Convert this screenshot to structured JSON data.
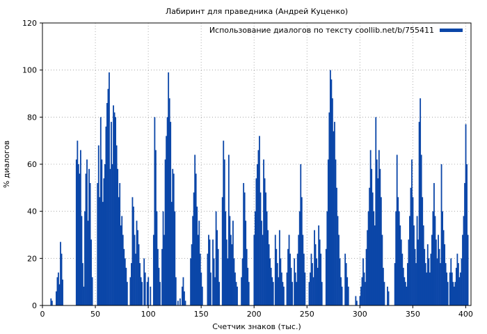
{
  "chart_data": {
    "type": "bar",
    "title": "Лабиринт для праведника (Андрей Куценко)",
    "xlabel": "Счетчик знаков (тыс.)",
    "ylabel": "% диалогов",
    "xlim": [
      0,
      405
    ],
    "ylim": [
      0,
      120
    ],
    "xticks": [
      0,
      50,
      100,
      150,
      200,
      250,
      300,
      350,
      400
    ],
    "yticks": [
      0,
      20,
      40,
      60,
      80,
      100,
      120
    ],
    "grid": true,
    "legend_position": "top-right",
    "bar_color": "#0b46a8",
    "series": [
      {
        "name": "Использование диалогов по тексту coollib.net/b/755411",
        "points": [
          [
            8,
            3
          ],
          [
            9,
            2
          ],
          [
            13,
            6
          ],
          [
            14,
            12
          ],
          [
            15,
            14
          ],
          [
            16,
            9
          ],
          [
            17,
            27
          ],
          [
            18,
            22
          ],
          [
            19,
            11
          ],
          [
            32,
            62
          ],
          [
            33,
            70
          ],
          [
            34,
            60
          ],
          [
            35,
            56
          ],
          [
            36,
            66
          ],
          [
            37,
            38
          ],
          [
            38,
            18
          ],
          [
            39,
            8
          ],
          [
            40,
            40
          ],
          [
            41,
            56
          ],
          [
            42,
            62
          ],
          [
            43,
            36
          ],
          [
            44,
            58
          ],
          [
            45,
            52
          ],
          [
            46,
            28
          ],
          [
            47,
            12
          ],
          [
            52,
            52
          ],
          [
            53,
            68
          ],
          [
            54,
            46
          ],
          [
            55,
            80
          ],
          [
            56,
            62
          ],
          [
            57,
            44
          ],
          [
            58,
            54
          ],
          [
            59,
            60
          ],
          [
            60,
            76
          ],
          [
            61,
            86
          ],
          [
            62,
            92
          ],
          [
            63,
            99
          ],
          [
            64,
            58
          ],
          [
            65,
            78
          ],
          [
            66,
            60
          ],
          [
            67,
            85
          ],
          [
            68,
            82
          ],
          [
            69,
            80
          ],
          [
            70,
            68
          ],
          [
            71,
            58
          ],
          [
            72,
            46
          ],
          [
            73,
            52
          ],
          [
            74,
            34
          ],
          [
            75,
            38
          ],
          [
            76,
            30
          ],
          [
            77,
            24
          ],
          [
            78,
            20
          ],
          [
            79,
            16
          ],
          [
            80,
            10
          ],
          [
            83,
            12
          ],
          [
            84,
            18
          ],
          [
            85,
            46
          ],
          [
            86,
            42
          ],
          [
            87,
            30
          ],
          [
            88,
            22
          ],
          [
            89,
            36
          ],
          [
            90,
            32
          ],
          [
            91,
            26
          ],
          [
            92,
            18
          ],
          [
            93,
            12
          ],
          [
            94,
            10
          ],
          [
            96,
            20
          ],
          [
            97,
            14
          ],
          [
            99,
            10
          ],
          [
            100,
            12
          ],
          [
            102,
            8
          ],
          [
            105,
            30
          ],
          [
            106,
            80
          ],
          [
            107,
            66
          ],
          [
            108,
            40
          ],
          [
            109,
            24
          ],
          [
            110,
            16
          ],
          [
            111,
            10
          ],
          [
            113,
            24
          ],
          [
            114,
            40
          ],
          [
            115,
            30
          ],
          [
            116,
            62
          ],
          [
            117,
            72
          ],
          [
            118,
            80
          ],
          [
            119,
            99
          ],
          [
            120,
            88
          ],
          [
            121,
            78
          ],
          [
            122,
            44
          ],
          [
            123,
            58
          ],
          [
            124,
            56
          ],
          [
            125,
            40
          ],
          [
            126,
            12
          ],
          [
            128,
            2
          ],
          [
            130,
            3
          ],
          [
            132,
            8
          ],
          [
            133,
            12
          ],
          [
            134,
            6
          ],
          [
            135,
            2
          ],
          [
            140,
            20
          ],
          [
            141,
            26
          ],
          [
            142,
            38
          ],
          [
            143,
            48
          ],
          [
            144,
            64
          ],
          [
            145,
            56
          ],
          [
            146,
            42
          ],
          [
            147,
            30
          ],
          [
            148,
            36
          ],
          [
            149,
            22
          ],
          [
            150,
            14
          ],
          [
            151,
            8
          ],
          [
            156,
            22
          ],
          [
            157,
            30
          ],
          [
            158,
            28
          ],
          [
            159,
            14
          ],
          [
            161,
            28
          ],
          [
            162,
            20
          ],
          [
            163,
            12
          ],
          [
            164,
            40
          ],
          [
            165,
            32
          ],
          [
            166,
            24
          ],
          [
            167,
            10
          ],
          [
            170,
            46
          ],
          [
            171,
            70
          ],
          [
            172,
            62
          ],
          [
            173,
            40
          ],
          [
            174,
            28
          ],
          [
            175,
            20
          ],
          [
            176,
            64
          ],
          [
            177,
            38
          ],
          [
            178,
            30
          ],
          [
            179,
            26
          ],
          [
            180,
            36
          ],
          [
            181,
            20
          ],
          [
            182,
            14
          ],
          [
            183,
            10
          ],
          [
            184,
            8
          ],
          [
            188,
            12
          ],
          [
            189,
            20
          ],
          [
            190,
            52
          ],
          [
            191,
            48
          ],
          [
            192,
            36
          ],
          [
            193,
            24
          ],
          [
            194,
            16
          ],
          [
            195,
            10
          ],
          [
            200,
            30
          ],
          [
            201,
            40
          ],
          [
            202,
            54
          ],
          [
            203,
            60
          ],
          [
            204,
            66
          ],
          [
            205,
            72
          ],
          [
            206,
            48
          ],
          [
            207,
            36
          ],
          [
            208,
            30
          ],
          [
            209,
            62
          ],
          [
            210,
            54
          ],
          [
            211,
            48
          ],
          [
            212,
            40
          ],
          [
            213,
            32
          ],
          [
            214,
            26
          ],
          [
            215,
            20
          ],
          [
            216,
            16
          ],
          [
            217,
            12
          ],
          [
            218,
            10
          ],
          [
            220,
            30
          ],
          [
            221,
            24
          ],
          [
            222,
            18
          ],
          [
            223,
            12
          ],
          [
            224,
            32
          ],
          [
            225,
            20
          ],
          [
            226,
            14
          ],
          [
            227,
            10
          ],
          [
            228,
            8
          ],
          [
            231,
            14
          ],
          [
            232,
            24
          ],
          [
            233,
            30
          ],
          [
            234,
            22
          ],
          [
            235,
            16
          ],
          [
            236,
            10
          ],
          [
            238,
            20
          ],
          [
            239,
            14
          ],
          [
            240,
            10
          ],
          [
            241,
            22
          ],
          [
            242,
            30
          ],
          [
            243,
            40
          ],
          [
            244,
            60
          ],
          [
            245,
            46
          ],
          [
            246,
            30
          ],
          [
            247,
            22
          ],
          [
            248,
            14
          ],
          [
            252,
            10
          ],
          [
            253,
            14
          ],
          [
            254,
            22
          ],
          [
            255,
            18
          ],
          [
            256,
            12
          ],
          [
            257,
            32
          ],
          [
            258,
            26
          ],
          [
            259,
            20
          ],
          [
            260,
            16
          ],
          [
            261,
            34
          ],
          [
            262,
            28
          ],
          [
            263,
            22
          ],
          [
            264,
            10
          ],
          [
            268,
            24
          ],
          [
            269,
            40
          ],
          [
            270,
            62
          ],
          [
            271,
            82
          ],
          [
            272,
            100
          ],
          [
            273,
            96
          ],
          [
            274,
            88
          ],
          [
            275,
            74
          ],
          [
            276,
            78
          ],
          [
            277,
            62
          ],
          [
            278,
            50
          ],
          [
            279,
            38
          ],
          [
            280,
            30
          ],
          [
            281,
            20
          ],
          [
            282,
            12
          ],
          [
            283,
            8
          ],
          [
            286,
            22
          ],
          [
            287,
            18
          ],
          [
            288,
            12
          ],
          [
            289,
            8
          ],
          [
            296,
            4
          ],
          [
            297,
            2
          ],
          [
            300,
            4
          ],
          [
            301,
            8
          ],
          [
            302,
            12
          ],
          [
            303,
            20
          ],
          [
            304,
            14
          ],
          [
            305,
            10
          ],
          [
            306,
            24
          ],
          [
            307,
            32
          ],
          [
            308,
            40
          ],
          [
            309,
            50
          ],
          [
            310,
            66
          ],
          [
            311,
            58
          ],
          [
            312,
            48
          ],
          [
            313,
            40
          ],
          [
            314,
            34
          ],
          [
            315,
            80
          ],
          [
            316,
            62
          ],
          [
            317,
            54
          ],
          [
            318,
            66
          ],
          [
            319,
            58
          ],
          [
            320,
            46
          ],
          [
            321,
            30
          ],
          [
            322,
            16
          ],
          [
            323,
            10
          ],
          [
            326,
            8
          ],
          [
            327,
            6
          ],
          [
            333,
            18
          ],
          [
            334,
            40
          ],
          [
            335,
            64
          ],
          [
            336,
            46
          ],
          [
            337,
            40
          ],
          [
            338,
            34
          ],
          [
            339,
            28
          ],
          [
            340,
            22
          ],
          [
            341,
            16
          ],
          [
            342,
            12
          ],
          [
            343,
            10
          ],
          [
            344,
            8
          ],
          [
            345,
            18
          ],
          [
            346,
            28
          ],
          [
            347,
            38
          ],
          [
            348,
            50
          ],
          [
            349,
            62
          ],
          [
            350,
            46
          ],
          [
            351,
            34
          ],
          [
            352,
            24
          ],
          [
            353,
            18
          ],
          [
            354,
            38
          ],
          [
            355,
            28
          ],
          [
            356,
            78
          ],
          [
            357,
            88
          ],
          [
            358,
            64
          ],
          [
            359,
            46
          ],
          [
            360,
            34
          ],
          [
            361,
            24
          ],
          [
            362,
            18
          ],
          [
            363,
            14
          ],
          [
            364,
            26
          ],
          [
            365,
            20
          ],
          [
            366,
            14
          ],
          [
            367,
            22
          ],
          [
            368,
            30
          ],
          [
            369,
            40
          ],
          [
            370,
            52
          ],
          [
            371,
            38
          ],
          [
            372,
            28
          ],
          [
            373,
            20
          ],
          [
            374,
            30
          ],
          [
            375,
            24
          ],
          [
            376,
            18
          ],
          [
            377,
            60
          ],
          [
            378,
            40
          ],
          [
            379,
            32
          ],
          [
            380,
            26
          ],
          [
            381,
            18
          ],
          [
            382,
            14
          ],
          [
            383,
            10
          ],
          [
            385,
            14
          ],
          [
            386,
            20
          ],
          [
            387,
            14
          ],
          [
            388,
            10
          ],
          [
            389,
            8
          ],
          [
            390,
            10
          ],
          [
            391,
            16
          ],
          [
            392,
            22
          ],
          [
            393,
            18
          ],
          [
            394,
            12
          ],
          [
            395,
            14
          ],
          [
            396,
            20
          ],
          [
            397,
            30
          ],
          [
            398,
            38
          ],
          [
            399,
            52
          ],
          [
            400,
            77
          ],
          [
            401,
            60
          ],
          [
            402,
            30
          ]
        ]
      }
    ]
  }
}
